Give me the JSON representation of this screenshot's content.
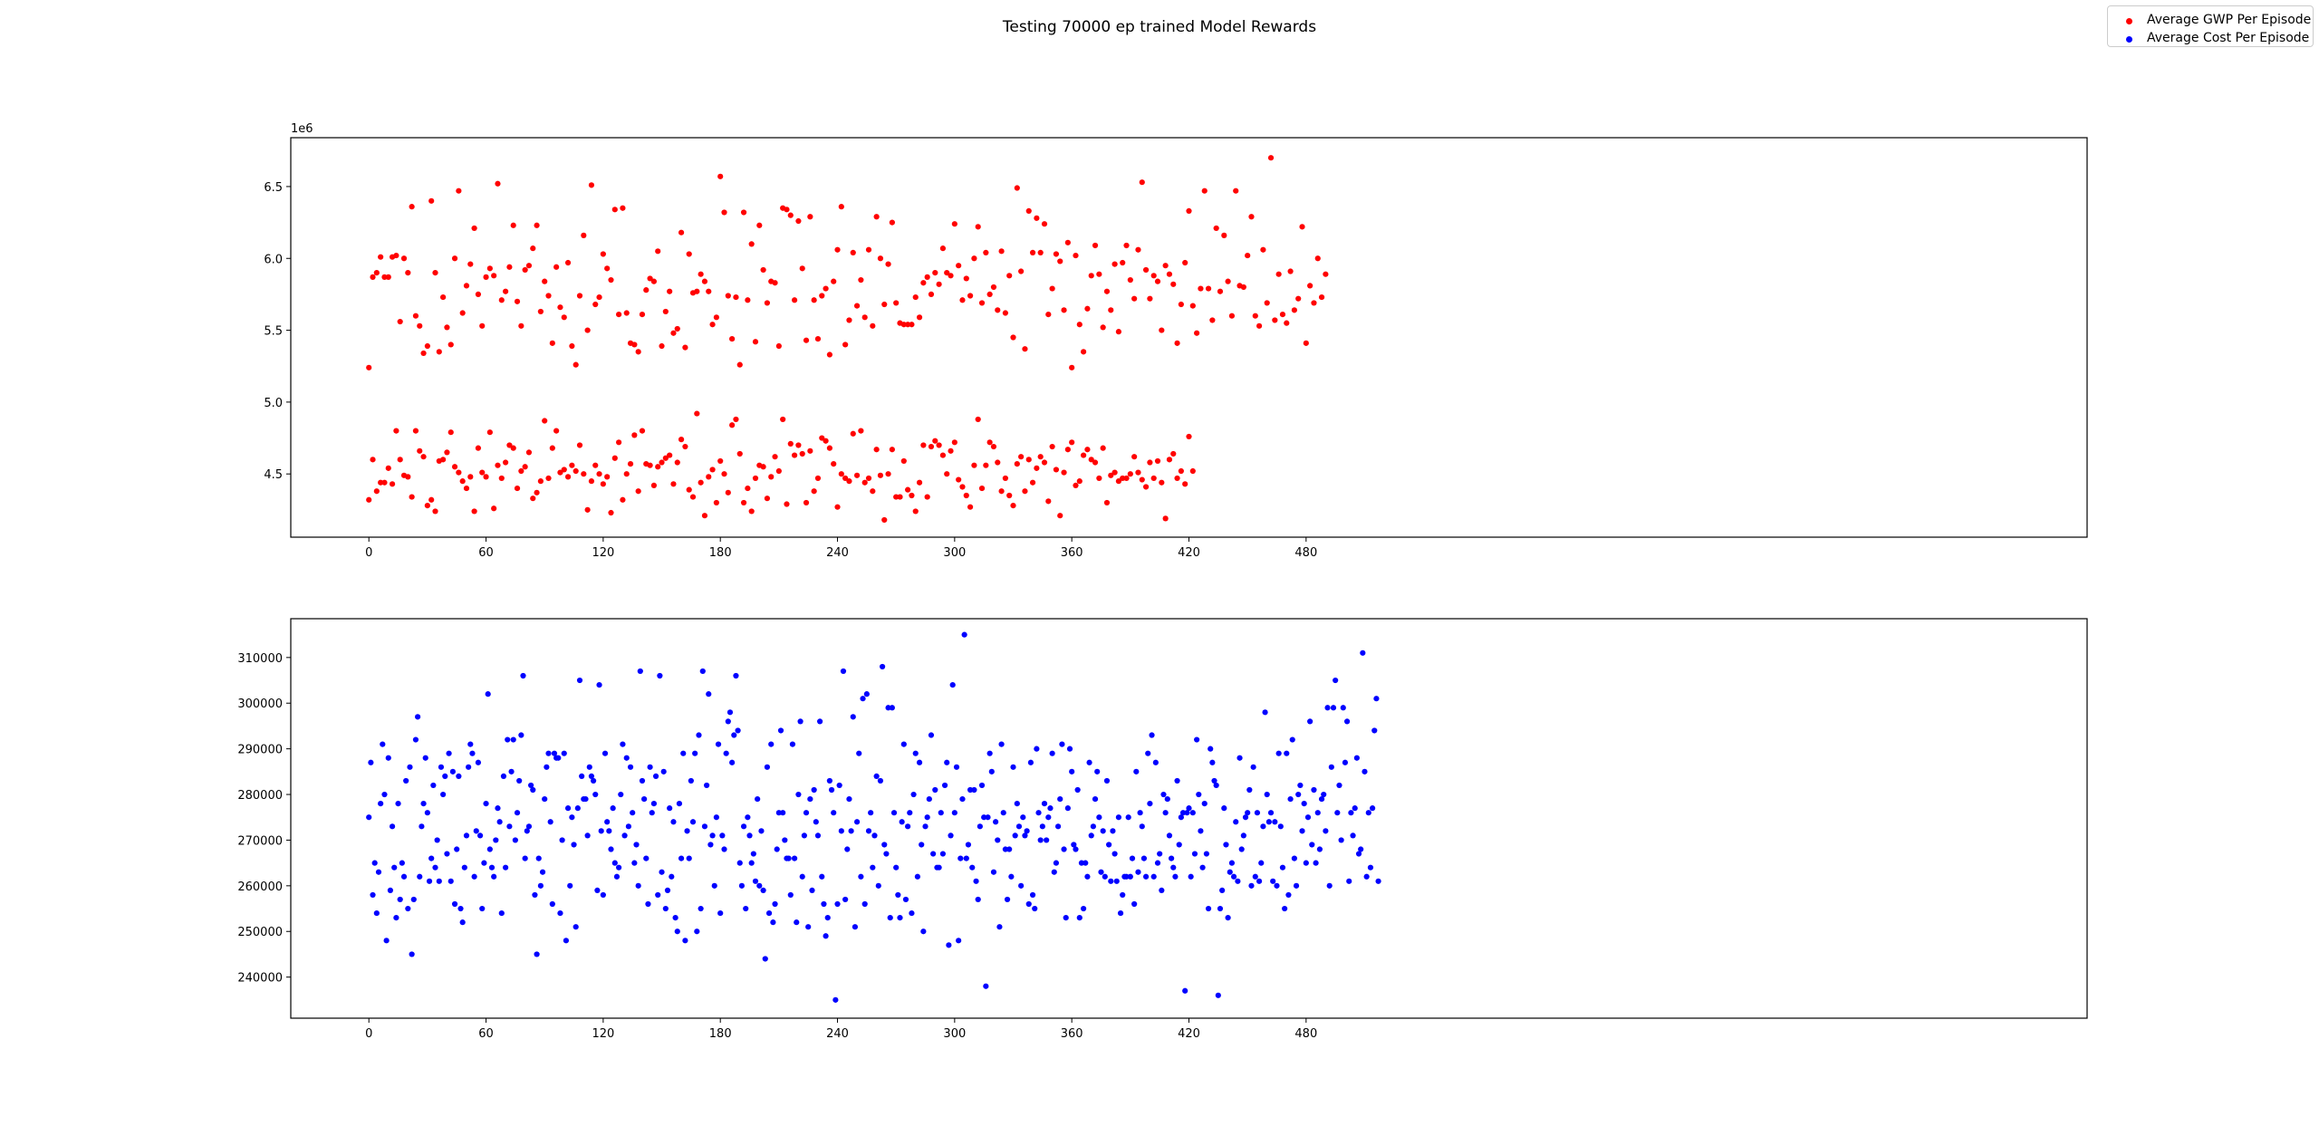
{
  "figure_title": "Testing 70000 ep trained Model Rewards",
  "legend": [
    {
      "label": "Average GWP Per Episode",
      "color": "#ff0000"
    },
    {
      "label": "Average Cost Per Episode",
      "color": "#0000ff"
    }
  ],
  "chart_data": [
    {
      "type": "scatter",
      "title": "",
      "xlabel": "",
      "ylabel": "",
      "series": [
        {
          "name": "Average GWP Per Episode",
          "color": "#ff0000"
        }
      ],
      "xlim": [
        -40,
        880
      ],
      "ylim": [
        4060000,
        6840000
      ],
      "x_ticks": [
        0,
        60,
        120,
        180,
        240,
        300,
        360,
        420,
        480
      ],
      "x_tick_labels": [
        "0",
        "60",
        "120",
        "180",
        "240",
        "300",
        "360",
        "420",
        "480"
      ],
      "y_ticks": [
        4500000,
        5000000,
        5500000,
        6000000,
        6500000
      ],
      "y_tick_labels": [
        "4.5",
        "5.0",
        "5.5",
        "6.0",
        "6.5"
      ],
      "offset_label": "1e6",
      "grid": false,
      "y_upper_band": [
        5.24,
        5.87,
        5.9,
        6.01,
        5.87,
        5.87,
        6.01,
        6.02,
        5.56,
        6.0,
        5.9,
        6.36,
        5.6,
        5.53,
        5.34,
        5.39,
        6.4,
        5.9,
        5.35,
        5.73,
        5.52,
        5.4,
        6.0,
        6.47,
        5.62,
        5.81,
        5.96,
        6.21,
        5.75,
        5.53,
        5.87,
        5.93,
        5.88,
        6.52,
        5.71,
        5.77,
        5.94,
        6.23,
        5.7,
        5.53,
        5.92,
        5.95,
        6.07,
        6.23,
        5.63,
        5.84,
        5.74,
        5.41,
        5.94,
        5.66,
        5.59,
        5.97,
        5.39,
        5.26,
        5.74,
        6.16,
        5.5,
        6.51,
        5.68,
        5.73,
        6.03,
        5.93,
        5.85,
        6.34,
        5.61,
        6.35,
        5.62,
        5.41,
        5.4,
        5.35,
        5.61,
        5.78,
        5.86,
        5.84,
        6.05,
        5.39,
        5.63,
        5.77,
        5.48,
        5.51,
        6.18,
        5.38,
        6.03,
        5.76,
        5.77,
        5.89,
        5.84,
        5.77,
        5.54,
        5.59,
        6.57,
        6.32,
        5.74,
        5.44,
        5.73,
        5.26,
        6.32,
        5.71,
        6.1,
        5.42,
        6.23,
        5.92,
        5.69,
        5.84,
        5.83,
        5.39,
        6.35,
        6.34,
        6.3,
        5.71,
        6.26,
        5.93,
        5.43,
        6.29,
        5.71,
        5.44,
        5.74,
        5.79,
        5.33,
        5.84,
        6.06,
        6.36,
        5.4,
        5.57,
        6.04,
        5.67,
        5.85,
        5.59,
        6.06,
        5.53,
        6.29,
        6.0,
        5.68,
        5.96,
        6.25,
        5.69,
        5.55,
        5.54,
        5.54,
        5.54,
        5.73,
        5.59,
        5.83,
        5.87,
        5.75,
        5.9,
        5.82,
        6.07,
        5.9,
        5.88,
        6.24,
        5.95,
        5.71,
        5.86,
        5.74,
        6.0,
        6.22,
        5.69,
        6.04,
        5.75,
        5.8,
        5.64,
        6.05,
        5.62,
        5.88,
        5.45,
        6.49,
        5.91,
        5.37,
        6.33,
        6.04,
        6.28,
        6.04,
        6.24,
        5.61,
        5.79,
        6.03,
        5.98,
        5.64,
        6.11,
        5.24,
        6.02,
        5.54,
        5.35,
        5.65,
        5.88,
        6.09,
        5.89,
        5.52,
        5.77,
        5.64,
        5.96,
        5.49,
        5.97,
        6.09,
        5.85,
        5.72,
        6.06,
        6.53,
        5.92,
        5.72,
        5.88,
        5.84,
        5.5,
        5.95,
        5.89,
        5.82,
        5.41,
        5.68,
        5.97,
        6.33,
        5.67,
        5.48,
        5.79,
        6.47,
        5.79,
        5.57,
        6.21,
        5.77,
        6.16,
        5.84,
        5.6,
        6.47,
        5.81,
        5.8,
        6.02,
        6.29,
        5.6,
        5.53,
        6.06,
        5.69,
        6.7,
        5.57,
        5.89,
        5.61,
        5.55,
        5.91,
        5.64,
        5.72,
        6.22,
        5.41,
        5.81,
        5.69,
        6.0,
        5.73,
        5.89
      ],
      "y_lower_band": [
        4.32,
        4.6,
        4.38,
        4.44,
        4.44,
        4.54,
        4.43,
        4.8,
        4.6,
        4.49,
        4.48,
        4.34,
        4.8,
        4.66,
        4.62,
        4.28,
        4.32,
        4.24,
        4.59,
        4.6,
        4.65,
        4.79,
        4.55,
        4.51,
        4.45,
        4.4,
        4.48,
        4.24,
        4.68,
        4.51,
        4.48,
        4.79,
        4.26,
        4.56,
        4.47,
        4.58,
        4.7,
        4.68,
        4.4,
        4.52,
        4.55,
        4.65,
        4.33,
        4.37,
        4.45,
        4.87,
        4.47,
        4.68,
        4.8,
        4.51,
        4.53,
        4.48,
        4.56,
        4.52,
        4.7,
        4.5,
        4.25,
        4.45,
        4.56,
        4.5,
        4.43,
        4.48,
        4.23,
        4.61,
        4.72,
        4.32,
        4.5,
        4.57,
        4.77,
        4.38,
        4.8,
        4.57,
        4.56,
        4.42,
        4.55,
        4.58,
        4.61,
        4.63,
        4.43,
        4.58,
        4.74,
        4.69,
        4.39,
        4.34,
        4.92,
        4.44,
        4.21,
        4.48,
        4.53,
        4.3,
        4.59,
        4.5,
        4.37,
        4.84,
        4.88,
        4.64,
        4.3,
        4.4,
        4.24,
        4.47,
        4.56,
        4.55,
        4.33,
        4.48,
        4.62,
        4.52,
        4.88,
        4.29,
        4.71,
        4.63,
        4.7,
        4.64,
        4.3,
        4.66,
        4.38,
        4.47,
        4.75,
        4.73,
        4.68,
        4.57,
        4.27,
        4.5,
        4.47,
        4.45,
        4.78,
        4.49,
        4.8,
        4.44,
        4.47,
        4.38,
        4.67,
        4.49,
        4.18,
        4.5,
        4.67,
        4.34,
        4.34,
        4.59,
        4.39,
        4.35,
        4.24,
        4.44,
        4.7,
        4.34,
        4.69,
        4.73,
        4.7,
        4.63,
        4.5,
        4.66,
        4.72,
        4.46,
        4.41,
        4.35,
        4.27,
        4.56,
        4.88,
        4.4,
        4.56,
        4.72,
        4.69,
        4.58,
        4.38,
        4.47,
        4.35,
        4.28,
        4.57,
        4.62,
        4.38,
        4.6,
        4.44,
        4.54,
        4.62,
        4.58,
        4.31,
        4.69,
        4.53,
        4.21,
        4.51,
        4.67,
        4.72,
        4.42,
        4.45,
        4.63,
        4.67,
        4.6,
        4.58,
        4.47,
        4.68,
        4.3,
        4.49,
        4.51,
        4.45,
        4.47,
        4.47,
        4.5,
        4.62,
        4.51,
        4.46,
        4.41,
        4.58,
        4.47,
        4.59,
        4.44,
        4.19,
        4.6,
        4.64,
        4.47,
        4.52,
        4.43,
        4.76,
        4.52
      ]
    },
    {
      "type": "scatter",
      "title": "",
      "xlabel": "",
      "ylabel": "",
      "series": [
        {
          "name": "Average Cost Per Episode",
          "color": "#0000ff"
        }
      ],
      "xlim": [
        -40,
        880
      ],
      "ylim": [
        231000,
        318500
      ],
      "x_ticks": [
        0,
        60,
        120,
        180,
        240,
        300,
        360,
        420,
        480
      ],
      "x_tick_labels": [
        "0",
        "60",
        "120",
        "180",
        "240",
        "300",
        "360",
        "420",
        "480"
      ],
      "y_ticks": [
        240000,
        250000,
        260000,
        270000,
        280000,
        290000,
        300000,
        310000
      ],
      "y_tick_labels": [
        "240000",
        "250000",
        "260000",
        "270000",
        "280000",
        "290000",
        "300000",
        "310000"
      ],
      "grid": false,
      "y_values": [
        275000,
        287000,
        258000,
        265000,
        254000,
        263000,
        278000,
        291000,
        280000,
        248000,
        288000,
        259000,
        273000,
        264000,
        253000,
        278000,
        257000,
        265000,
        262000,
        283000,
        255000,
        286000,
        245000,
        257000,
        292000,
        297000,
        262000,
        273000,
        278000,
        288000,
        276000,
        261000,
        266000,
        282000,
        264000,
        270000,
        261000,
        286000,
        280000,
        284000,
        267000,
        289000,
        261000,
        285000,
        256000,
        268000,
        284000,
        255000,
        252000,
        264000,
        271000,
        286000,
        291000,
        289000,
        262000,
        272000,
        287000,
        271000,
        255000,
        265000,
        278000,
        302000,
        268000,
        264000,
        262000,
        270000,
        277000,
        274000,
        254000,
        284000,
        264000,
        292000,
        273000,
        285000,
        292000,
        270000,
        276000,
        283000,
        293000,
        306000,
        266000,
        272000,
        273000,
        282000,
        281000,
        258000,
        245000,
        266000,
        260000,
        263000,
        279000,
        286000,
        289000,
        274000,
        256000,
        289000,
        288000,
        288000,
        254000,
        270000,
        289000,
        248000,
        277000,
        260000,
        275000,
        269000,
        251000,
        277000,
        305000,
        284000,
        279000,
        279000,
        271000,
        286000,
        284000,
        283000,
        280000,
        259000,
        304000,
        272000,
        258000,
        289000,
        274000,
        272000,
        268000,
        277000,
        265000,
        262000,
        264000,
        280000,
        291000,
        271000,
        288000,
        273000,
        286000,
        276000,
        265000,
        269000,
        260000,
        307000,
        283000,
        279000,
        266000,
        256000,
        286000,
        276000,
        278000,
        284000,
        258000,
        306000,
        263000,
        285000,
        255000,
        259000,
        277000,
        262000,
        274000,
        253000,
        250000,
        278000,
        266000,
        289000,
        248000,
        272000,
        266000,
        283000,
        274000,
        289000,
        250000,
        293000,
        255000,
        307000,
        273000,
        282000,
        302000,
        269000,
        271000,
        260000,
        275000,
        291000,
        254000,
        271000,
        268000,
        289000,
        296000,
        298000,
        287000,
        293000,
        306000,
        294000,
        265000,
        260000,
        273000,
        255000,
        275000,
        271000,
        265000,
        267000,
        261000,
        279000,
        260000,
        272000,
        259000,
        244000,
        286000,
        254000,
        291000,
        252000,
        256000,
        268000,
        276000,
        294000,
        276000,
        270000,
        266000,
        266000,
        258000,
        291000,
        266000,
        252000,
        280000,
        296000,
        262000,
        271000,
        276000,
        251000,
        279000,
        259000,
        281000,
        274000,
        271000,
        296000,
        262000,
        256000,
        249000,
        253000,
        283000,
        281000,
        276000,
        235000,
        256000,
        282000,
        272000,
        307000,
        257000,
        268000,
        279000,
        272000,
        297000,
        251000,
        274000,
        289000,
        262000,
        301000,
        256000,
        302000,
        272000,
        276000,
        264000,
        271000,
        284000,
        260000,
        283000,
        308000,
        269000,
        267000,
        299000,
        253000,
        299000,
        276000,
        264000,
        258000,
        253000,
        274000,
        291000,
        257000,
        273000,
        276000,
        254000,
        280000,
        289000,
        262000,
        287000,
        269000,
        250000,
        273000,
        275000,
        279000,
        293000,
        267000,
        281000,
        264000,
        264000,
        276000,
        267000,
        282000,
        287000,
        247000,
        271000,
        304000,
        276000,
        286000,
        248000,
        266000,
        279000,
        315000,
        266000,
        269000,
        281000,
        264000,
        281000,
        261000,
        257000,
        273000,
        282000,
        275000,
        238000,
        275000,
        289000,
        285000,
        263000,
        274000,
        270000,
        251000,
        291000,
        276000,
        268000,
        257000,
        268000,
        262000,
        286000,
        271000,
        278000,
        273000,
        260000,
        275000,
        271000,
        272000,
        256000,
        287000,
        258000,
        255000,
        290000,
        276000,
        270000,
        273000,
        278000,
        270000,
        275000,
        277000,
        289000,
        263000,
        265000,
        273000,
        279000,
        291000,
        268000,
        253000,
        277000,
        290000,
        285000,
        269000,
        268000,
        281000,
        253000,
        265000,
        255000,
        265000,
        262000,
        287000,
        271000,
        273000,
        279000,
        285000,
        275000,
        263000,
        272000,
        262000,
        283000,
        269000,
        261000,
        272000,
        267000,
        261000,
        275000,
        254000,
        258000,
        262000,
        262000,
        275000,
        262000,
        266000,
        256000,
        285000,
        263000,
        276000,
        273000,
        266000,
        262000,
        289000,
        278000,
        293000,
        262000,
        287000,
        265000,
        267000,
        259000,
        280000,
        276000,
        279000,
        271000,
        266000,
        264000,
        262000,
        283000,
        269000,
        275000,
        276000,
        237000,
        276000,
        277000,
        262000,
        276000,
        267000,
        292000,
        280000,
        272000,
        264000,
        278000,
        267000,
        255000,
        290000,
        287000,
        283000,
        282000,
        236000,
        255000,
        259000,
        277000,
        269000,
        253000,
        263000,
        265000,
        262000,
        274000,
        261000,
        288000,
        268000,
        271000,
        275000,
        276000,
        281000,
        260000,
        286000,
        262000,
        276000,
        261000,
        265000,
        273000,
        298000,
        280000,
        274000,
        276000,
        261000,
        274000,
        260000,
        289000,
        273000,
        264000,
        255000,
        289000,
        258000,
        279000,
        292000,
        266000,
        260000,
        280000,
        282000,
        272000,
        278000,
        265000,
        275000,
        296000,
        269000,
        281000,
        265000,
        276000,
        268000,
        279000,
        280000,
        272000,
        299000,
        260000,
        286000,
        299000,
        305000,
        276000,
        282000,
        270000,
        299000,
        287000,
        296000,
        261000,
        276000,
        271000,
        277000,
        288000,
        267000,
        268000,
        311000,
        285000,
        262000,
        276000,
        264000,
        277000,
        294000,
        301000,
        261000
      ]
    }
  ]
}
